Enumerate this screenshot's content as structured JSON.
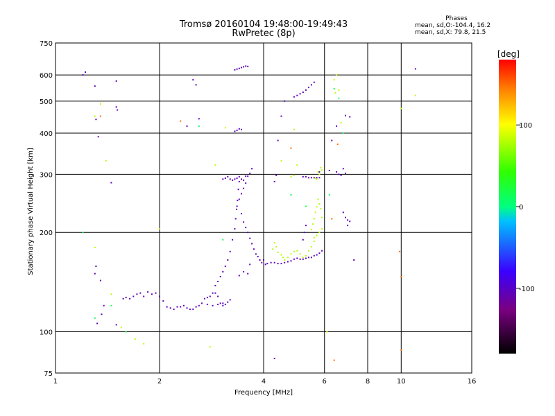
{
  "header": {
    "title_line1": "Tromsø 20160104 19:48:00-19:49:43",
    "title_line2": "RwPretec (8p)"
  },
  "phases": {
    "label": "Phases",
    "line_o": "mean, sd,O:-104.4, 16.2",
    "line_x": "mean, sd,X:  79.8, 21.5"
  },
  "colorbar": {
    "label": "[deg]",
    "ticks": [
      {
        "value": 100,
        "label": "100"
      },
      {
        "value": 0,
        "label": "0"
      },
      {
        "value": -100,
        "label": "-100"
      }
    ],
    "range": [
      -180,
      180
    ]
  },
  "chart_data": {
    "type": "scatter",
    "title": "Tromsø 20160104 19:48:00-19:49:43",
    "subtitle": "RwPretec (8p)",
    "xlabel": "Frequency [MHz]",
    "ylabel": "Stationary phase Virtual Height [km]",
    "xscale": "log",
    "yscale": "log",
    "xlim": [
      1,
      16
    ],
    "ylim": [
      75,
      750
    ],
    "xticks": [
      1,
      2,
      4,
      6,
      8,
      10,
      16
    ],
    "yticks": [
      75,
      100,
      200,
      300,
      400,
      500,
      600,
      750
    ],
    "grid": true,
    "color_variable": "phase [deg]",
    "series": [
      {
        "color_phase": -105,
        "points": [
          [
            1.57,
            126
          ],
          [
            1.6,
            127
          ],
          [
            1.64,
            126
          ],
          [
            1.68,
            128
          ],
          [
            1.72,
            130
          ],
          [
            1.76,
            131
          ],
          [
            1.8,
            128
          ],
          [
            1.85,
            132
          ],
          [
            1.9,
            130
          ],
          [
            1.95,
            131
          ],
          [
            2.0,
            128
          ],
          [
            2.05,
            124
          ],
          [
            2.1,
            119
          ],
          [
            2.15,
            118
          ],
          [
            2.2,
            117
          ],
          [
            2.25,
            119
          ],
          [
            2.3,
            119
          ],
          [
            2.35,
            120
          ],
          [
            2.4,
            118
          ],
          [
            2.45,
            117
          ],
          [
            2.5,
            117
          ],
          [
            2.55,
            119
          ],
          [
            2.6,
            120
          ],
          [
            2.65,
            122
          ],
          [
            2.7,
            126
          ],
          [
            2.75,
            127
          ],
          [
            2.8,
            128
          ],
          [
            2.85,
            131
          ],
          [
            2.9,
            131
          ],
          [
            2.95,
            128
          ],
          [
            3.0,
            122
          ],
          [
            3.05,
            122
          ],
          [
            3.1,
            121
          ],
          [
            3.15,
            123
          ],
          [
            3.2,
            125
          ],
          [
            2.75,
            121
          ],
          [
            2.85,
            120
          ],
          [
            2.95,
            121
          ],
          [
            3.05,
            120
          ],
          [
            2.9,
            138
          ],
          [
            2.95,
            142
          ],
          [
            3.0,
            147
          ],
          [
            3.05,
            152
          ],
          [
            3.1,
            158
          ],
          [
            3.15,
            165
          ],
          [
            3.2,
            175
          ],
          [
            3.25,
            190
          ],
          [
            3.3,
            205
          ],
          [
            3.32,
            220
          ],
          [
            3.34,
            235
          ],
          [
            3.36,
            250
          ],
          [
            3.38,
            270
          ],
          [
            3.4,
            285
          ],
          [
            3.45,
            228
          ],
          [
            3.5,
            215
          ],
          [
            3.55,
            207
          ],
          [
            3.6,
            200
          ],
          [
            3.65,
            192
          ],
          [
            3.7,
            185
          ],
          [
            3.75,
            178
          ],
          [
            3.8,
            172
          ],
          [
            3.85,
            169
          ],
          [
            3.9,
            165
          ],
          [
            3.05,
            290
          ],
          [
            3.1,
            292
          ],
          [
            3.15,
            295
          ],
          [
            3.2,
            290
          ],
          [
            3.25,
            288
          ],
          [
            3.3,
            290
          ],
          [
            3.35,
            292
          ],
          [
            3.4,
            295
          ],
          [
            3.45,
            290
          ],
          [
            3.5,
            288
          ],
          [
            3.55,
            296
          ],
          [
            3.35,
            240
          ],
          [
            3.4,
            252
          ],
          [
            3.45,
            262
          ],
          [
            3.5,
            272
          ],
          [
            3.55,
            282
          ],
          [
            3.6,
            296
          ],
          [
            3.65,
            302
          ],
          [
            3.7,
            312
          ],
          [
            3.4,
            148
          ],
          [
            3.5,
            152
          ],
          [
            3.6,
            150
          ],
          [
            3.65,
            160
          ],
          [
            3.3,
            405
          ],
          [
            3.35,
            408
          ],
          [
            3.4,
            412
          ],
          [
            3.45,
            410
          ],
          [
            3.35,
            625
          ],
          [
            3.4,
            628
          ],
          [
            3.45,
            632
          ],
          [
            3.5,
            635
          ],
          [
            3.55,
            638
          ],
          [
            3.6,
            637
          ],
          [
            3.3,
            622
          ],
          [
            3.95,
            162
          ],
          [
            4.0,
            165
          ],
          [
            4.05,
            160
          ],
          [
            4.1,
            161
          ],
          [
            4.2,
            162
          ],
          [
            4.3,
            162
          ],
          [
            4.4,
            161
          ],
          [
            4.5,
            161
          ],
          [
            4.6,
            162
          ],
          [
            4.7,
            163
          ],
          [
            4.8,
            164
          ],
          [
            4.9,
            166
          ],
          [
            5.0,
            167
          ],
          [
            5.1,
            166
          ],
          [
            5.2,
            166
          ],
          [
            5.3,
            167
          ],
          [
            5.4,
            168
          ],
          [
            5.5,
            168
          ],
          [
            5.6,
            170
          ],
          [
            5.7,
            171
          ],
          [
            5.8,
            173
          ],
          [
            5.9,
            176
          ],
          [
            4.9,
            515
          ],
          [
            5.0,
            520
          ],
          [
            5.1,
            526
          ],
          [
            5.2,
            532
          ],
          [
            5.3,
            540
          ],
          [
            5.4,
            550
          ],
          [
            5.5,
            560
          ],
          [
            5.6,
            570
          ],
          [
            5.4,
            293
          ],
          [
            5.5,
            293
          ],
          [
            5.6,
            293
          ],
          [
            5.7,
            293
          ],
          [
            5.8,
            293
          ],
          [
            5.2,
            295
          ],
          [
            5.3,
            295
          ],
          [
            6.5,
            305
          ],
          [
            6.6,
            300
          ],
          [
            6.7,
            298
          ],
          [
            6.8,
            312
          ],
          [
            6.9,
            302
          ],
          [
            6.8,
            230
          ],
          [
            6.9,
            222
          ],
          [
            7.0,
            218
          ],
          [
            7.1,
            216
          ],
          [
            7.0,
            210
          ],
          [
            6.9,
            452
          ],
          [
            7.1,
            448
          ],
          [
            1.3,
            555
          ],
          [
            1.31,
            440
          ],
          [
            1.33,
            390
          ],
          [
            1.3,
            150
          ],
          [
            1.31,
            158
          ],
          [
            1.35,
            143
          ],
          [
            1.38,
            120
          ],
          [
            1.36,
            113
          ],
          [
            1.32,
            106
          ],
          [
            1.45,
            283
          ],
          [
            1.5,
            480
          ],
          [
            1.51,
            470
          ],
          [
            1.5,
            575
          ],
          [
            1.2,
            600
          ],
          [
            1.22,
            612
          ],
          [
            1.5,
            105
          ],
          [
            2.5,
            580
          ],
          [
            2.55,
            560
          ],
          [
            2.4,
            420
          ],
          [
            2.6,
            442
          ],
          [
            4.3,
            83
          ],
          [
            4.5,
            450
          ],
          [
            4.6,
            500
          ],
          [
            4.4,
            380
          ],
          [
            4.3,
            285
          ],
          [
            4.35,
            298
          ],
          [
            6.5,
            420
          ],
          [
            6.2,
            308
          ],
          [
            7.3,
            165
          ],
          [
            5.8,
            305
          ],
          [
            6.3,
            380
          ],
          [
            11.0,
            626
          ],
          [
            5.25,
            200
          ],
          [
            5.2,
            190
          ],
          [
            5.3,
            210
          ]
        ]
      },
      {
        "color_phase": 80,
        "points": [
          [
            4.25,
            178
          ],
          [
            4.3,
            186
          ],
          [
            4.35,
            181
          ],
          [
            4.4,
            174
          ],
          [
            4.5,
            171
          ],
          [
            4.55,
            168
          ],
          [
            4.6,
            165
          ],
          [
            4.7,
            168
          ],
          [
            4.8,
            172
          ],
          [
            4.9,
            175
          ],
          [
            5.0,
            176
          ],
          [
            5.1,
            172
          ],
          [
            5.2,
            168
          ],
          [
            5.3,
            170
          ],
          [
            5.4,
            176
          ],
          [
            5.5,
            181
          ],
          [
            5.6,
            188
          ],
          [
            5.5,
            204
          ],
          [
            5.55,
            212
          ],
          [
            5.6,
            220
          ],
          [
            5.65,
            230
          ],
          [
            5.7,
            239
          ],
          [
            5.75,
            252
          ],
          [
            5.8,
            244
          ],
          [
            5.85,
            236
          ],
          [
            5.9,
            222
          ],
          [
            5.6,
            193
          ],
          [
            5.7,
            196
          ],
          [
            5.8,
            200
          ],
          [
            5.9,
            205
          ],
          [
            5.7,
            290
          ],
          [
            5.8,
            300
          ],
          [
            5.9,
            309
          ],
          [
            5.85,
            314
          ],
          [
            5.75,
            305
          ],
          [
            5.65,
            292
          ],
          [
            4.8,
            295
          ],
          [
            4.9,
            298
          ],
          [
            1.35,
            490
          ],
          [
            1.3,
            450
          ],
          [
            1.4,
            330
          ],
          [
            1.45,
            130
          ],
          [
            1.3,
            180
          ],
          [
            1.55,
            103
          ],
          [
            1.7,
            95
          ],
          [
            1.8,
            92
          ],
          [
            2.0,
            205
          ],
          [
            2.8,
            90
          ],
          [
            2.9,
            320
          ],
          [
            3.1,
            415
          ],
          [
            4.5,
            330
          ],
          [
            4.9,
            410
          ],
          [
            5.0,
            320
          ],
          [
            6.1,
            100
          ],
          [
            6.4,
            580
          ],
          [
            6.5,
            600
          ],
          [
            6.7,
            430
          ],
          [
            10.0,
            475
          ],
          [
            11.0,
            520
          ],
          [
            6.45,
            530
          ],
          [
            6.6,
            540
          ]
        ]
      },
      {
        "color_phase": 15,
        "points": [
          [
            1.2,
            200
          ],
          [
            1.3,
            110
          ],
          [
            1.45,
            120
          ],
          [
            1.6,
            100
          ],
          [
            6.6,
            510
          ],
          [
            6.4,
            545
          ],
          [
            4.8,
            260
          ],
          [
            5.3,
            240
          ],
          [
            6.2,
            260
          ],
          [
            6.8,
            400
          ],
          [
            2.6,
            420
          ],
          [
            3.05,
            190
          ]
        ]
      },
      {
        "color_phase": 150,
        "points": [
          [
            1.35,
            450
          ],
          [
            2.3,
            435
          ],
          [
            4.8,
            360
          ],
          [
            6.3,
            220
          ],
          [
            6.4,
            82
          ],
          [
            9.9,
            175
          ],
          [
            10.0,
            147
          ],
          [
            10.0,
            88
          ],
          [
            6.55,
            370
          ]
        ]
      }
    ]
  }
}
